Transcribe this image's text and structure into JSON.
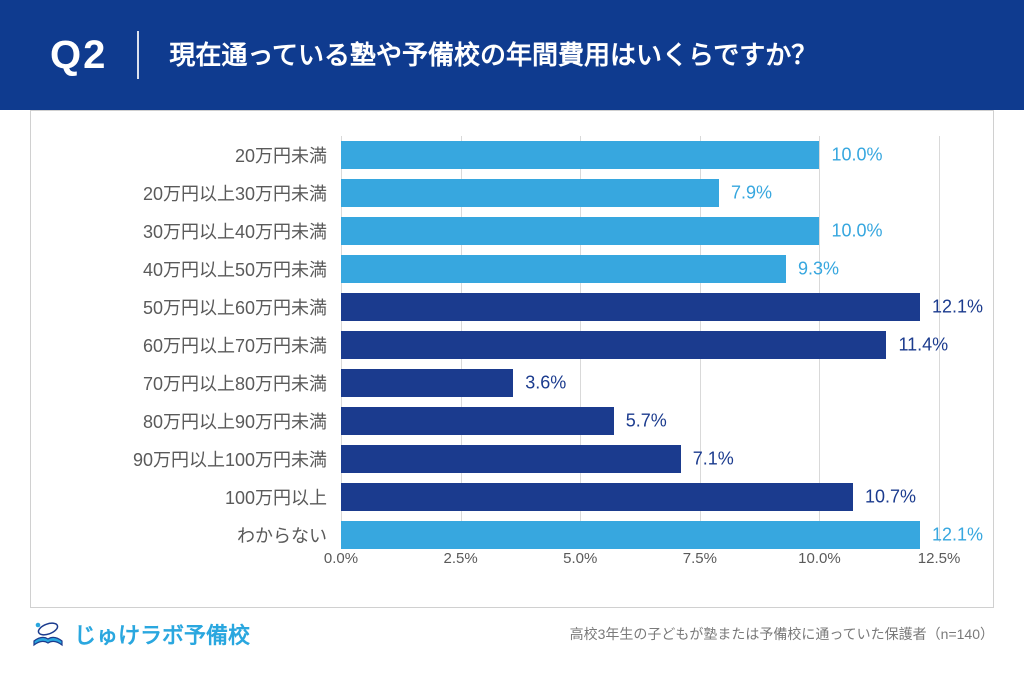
{
  "colors": {
    "header_bg": "#0f3b8f",
    "header_text": "#ffffff",
    "panel_bg": "#ffffff",
    "panel_border": "#d0d0d0",
    "grid": "#d9d9d9",
    "axis_text": "#5a5a5a",
    "cat_text": "#5a5a5a",
    "logo": "#2aa7df",
    "footnote": "#7a7a7a"
  },
  "header": {
    "question_number": "Q2",
    "title": "現在通っている塾や予備校の年間費用はいくらですか？"
  },
  "chart": {
    "type": "bar-horizontal",
    "xmin": 0.0,
    "xmax": 13.0,
    "ticks": [
      0.0,
      2.5,
      5.0,
      7.5,
      10.0,
      12.5
    ],
    "tick_labels": [
      "0.0%",
      "2.5%",
      "5.0%",
      "7.5%",
      "10.0%",
      "12.5%"
    ],
    "bar_colors": {
      "light": "#37a7df",
      "dark": "#1b3b8e"
    },
    "value_label_colors": {
      "light": "#37a7df",
      "dark": "#1b3b8e"
    },
    "rows": [
      {
        "label": "20万円未満",
        "value": 10.0,
        "display": "10.0%",
        "shade": "light"
      },
      {
        "label": "20万円以上30万円未満",
        "value": 7.9,
        "display": "7.9%",
        "shade": "light"
      },
      {
        "label": "30万円以上40万円未満",
        "value": 10.0,
        "display": "10.0%",
        "shade": "light"
      },
      {
        "label": "40万円以上50万円未満",
        "value": 9.3,
        "display": "9.3%",
        "shade": "light"
      },
      {
        "label": "50万円以上60万円未満",
        "value": 12.1,
        "display": "12.1%",
        "shade": "dark"
      },
      {
        "label": "60万円以上70万円未満",
        "value": 11.4,
        "display": "11.4%",
        "shade": "dark"
      },
      {
        "label": "70万円以上80万円未満",
        "value": 3.6,
        "display": "3.6%",
        "shade": "dark"
      },
      {
        "label": "80万円以上90万円未満",
        "value": 5.7,
        "display": "5.7%",
        "shade": "dark"
      },
      {
        "label": "90万円以上100万円未満",
        "value": 7.1,
        "display": "7.1%",
        "shade": "dark"
      },
      {
        "label": "100万円以上",
        "value": 10.7,
        "display": "10.7%",
        "shade": "dark"
      },
      {
        "label": "わからない",
        "value": 12.1,
        "display": "12.1%",
        "shade": "light"
      }
    ]
  },
  "footer": {
    "logo_text": "じゅけラボ予備校",
    "footnote": "高校3年生の子どもが塾または予備校に通っていた保護者（n=140）"
  }
}
